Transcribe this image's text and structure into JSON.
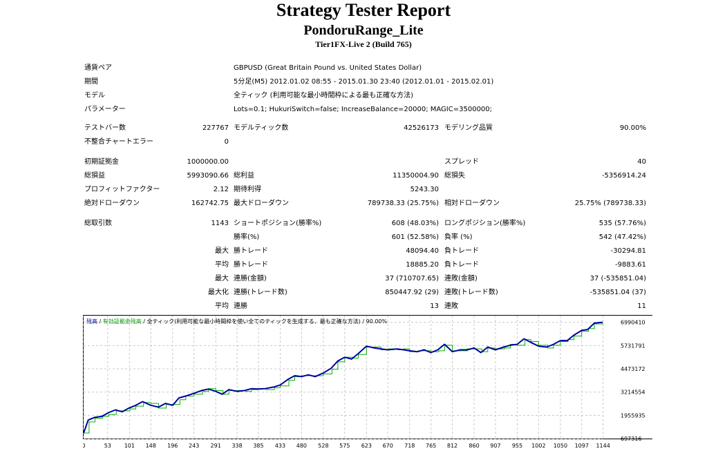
{
  "header": {
    "title": "Strategy Tester Report",
    "ea_name": "PondoruRange_Lite",
    "server": "Tier1FX-Live 2 (Build 765)"
  },
  "info": {
    "symbol_label": "通貨ペア",
    "symbol_value": "GBPUSD (Great Britain Pound vs. United States Dollar)",
    "period_label": "期間",
    "period_value": "5分足(M5) 2012.01.02 08:55 - 2015.01.30 23:40 (2012.01.01 - 2015.02.01)",
    "model_label": "モデル",
    "model_value": "全ティック (利用可能な最小時間枠による最も正確な方法)",
    "params_label": "パラメーター",
    "params_value": "Lots=0.1; HukuriSwitch=false; IncreaseBalance=20000; MAGIC=3500000;"
  },
  "stats": {
    "bars_label": "テストバー数",
    "bars_value": "227767",
    "ticks_label": "モデルティック数",
    "ticks_value": "42526173",
    "quality_label": "モデリング品質",
    "quality_value": "90.00%",
    "mismatch_label": "不整合チャートエラー",
    "mismatch_value": "0",
    "deposit_label": "初期証拠金",
    "deposit_value": "1000000.00",
    "spread_label": "スプレッド",
    "spread_value": "40",
    "net_label": "総損益",
    "net_value": "5993090.66",
    "gross_profit_label": "総利益",
    "gross_profit_value": "11350004.90",
    "gross_loss_label": "総損失",
    "gross_loss_value": "-5356914.24",
    "pf_label": "プロフィットファクター",
    "pf_value": "2.12",
    "payoff_label": "期待利得",
    "payoff_value": "5243.30",
    "abs_dd_label": "絶対ドローダウン",
    "abs_dd_value": "162742.75",
    "max_dd_label": "最大ドローダウン",
    "max_dd_value": "789738.33 (25.75%)",
    "rel_dd_label": "相対ドローダウン",
    "rel_dd_value": "25.75% (789738.33)",
    "trades_label": "総取引数",
    "trades_value": "1143",
    "short_label": "ショートポジション(勝率%)",
    "short_value": "608 (48.03%)",
    "long_label": "ロングポジション(勝率%)",
    "long_value": "535 (57.76%)",
    "win_rate_label": "勝率(%)",
    "win_rate_value": "601 (52.58%)",
    "loss_rate_label": "負率 (%)",
    "loss_rate_value": "542 (47.42%)",
    "max_label": "最大",
    "largest_win_label": "勝トレード",
    "largest_win_value": "48094.40",
    "largest_loss_label": "負トレード",
    "largest_loss_value": "-30294.81",
    "avg_label": "平均",
    "avg_win_label": "勝トレード",
    "avg_win_value": "18885.20",
    "avg_loss_label": "負トレード",
    "avg_loss_value": "-9883.61",
    "max2_label": "最大",
    "consec_win_money_label": "連勝(金額)",
    "consec_win_money_value": "37 (710707.65)",
    "consec_loss_money_label": "連敗(金額)",
    "consec_loss_money_value": "37 (-535851.04)",
    "maximal_label": "最大化",
    "consec_win_count_label": "連勝(トレード数)",
    "consec_win_count_value": "850447.92 (29)",
    "consec_loss_count_label": "連敗(トレード数)",
    "consec_loss_count_value": "-535851.04 (37)",
    "avg2_label": "平均",
    "avg_consec_win_label": "連勝",
    "avg_consec_win_value": "13",
    "avg_consec_loss_label": "連敗",
    "avg_consec_loss_value": "11"
  },
  "colors": {
    "balance": "#0000a0",
    "equity": "#00b000",
    "grid": "#c8c8c8"
  },
  "chart_data": {
    "type": "line",
    "legend_balance": "残高",
    "legend_sep1": " / ",
    "legend_equity": "有効証拠金残高",
    "legend_rest": " / 全ティック(利用可能な最小時間枠を使い全てのティックを生成する、最も正確な方法) / 90.00%",
    "x_ticks": [
      0,
      53,
      101,
      148,
      196,
      243,
      291,
      338,
      385,
      433,
      480,
      528,
      575,
      623,
      670,
      718,
      765,
      812,
      860,
      907,
      955,
      1002,
      1050,
      1097,
      1144
    ],
    "y_ticks": [
      697316,
      1955935,
      3214554,
      4473172,
      5731791,
      6990410
    ],
    "xlim": [
      0,
      1143
    ],
    "ylim": [
      700000,
      7350000
    ],
    "series": [
      {
        "name": "残高",
        "x": [
          0,
          10,
          25,
          40,
          55,
          70,
          85,
          100,
          115,
          130,
          148,
          165,
          180,
          196,
          210,
          225,
          243,
          260,
          275,
          291,
          305,
          320,
          338,
          355,
          370,
          385,
          400,
          420,
          433,
          450,
          465,
          480,
          495,
          510,
          528,
          545,
          560,
          575,
          590,
          605,
          623,
          640,
          655,
          670,
          690,
          705,
          718,
          735,
          750,
          765,
          780,
          795,
          812,
          830,
          845,
          860,
          875,
          890,
          907,
          925,
          940,
          955,
          970,
          985,
          1002,
          1020,
          1035,
          1050,
          1065,
          1080,
          1097,
          1110,
          1125,
          1143
        ],
        "y": [
          1000000,
          1700000,
          1850000,
          1900000,
          2100000,
          2250000,
          2150000,
          2350000,
          2500000,
          2700000,
          2500000,
          2400000,
          2600000,
          2500000,
          2900000,
          3000000,
          3150000,
          3300000,
          3380000,
          3250000,
          3100000,
          3350000,
          3250000,
          3300000,
          3400000,
          3380000,
          3400000,
          3500000,
          3600000,
          3900000,
          4100000,
          4050000,
          4150000,
          4050000,
          4250000,
          4500000,
          4900000,
          5100000,
          5000000,
          5300000,
          5700000,
          5600000,
          5550000,
          5500000,
          5550000,
          5500000,
          5450000,
          5400000,
          5500000,
          5350000,
          5500000,
          5800000,
          5400000,
          5500000,
          5500000,
          5600000,
          5350000,
          5650000,
          5500000,
          5650000,
          5750000,
          5800000,
          6100000,
          5900000,
          5700000,
          5650000,
          5800000,
          6000000,
          6000000,
          6300000,
          6550000,
          6600000,
          6950000,
          6990410
        ]
      },
      {
        "name": "有効証拠金残高",
        "x": [
          0,
          12,
          25,
          42,
          55,
          72,
          85,
          102,
          115,
          132,
          148,
          165,
          182,
          196,
          212,
          225,
          243,
          262,
          275,
          291,
          307,
          320,
          338,
          357,
          370,
          385,
          402,
          420,
          433,
          452,
          465,
          480,
          497,
          510,
          528,
          547,
          560,
          575,
          592,
          605,
          623,
          642,
          655,
          670,
          692,
          705,
          718,
          737,
          750,
          765,
          782,
          795,
          812,
          832,
          845,
          860,
          877,
          890,
          907,
          927,
          940,
          955,
          972,
          985,
          1002,
          1022,
          1035,
          1050,
          1067,
          1080,
          1097,
          1112,
          1125,
          1143
        ],
        "y": [
          1000000,
          1600000,
          1800000,
          1900000,
          2000000,
          2200000,
          2200000,
          2300000,
          2450000,
          2650000,
          2600000,
          2350000,
          2550000,
          2550000,
          2800000,
          3000000,
          3100000,
          3250000,
          3400000,
          3300000,
          3100000,
          3300000,
          3300000,
          3250000,
          3350000,
          3400000,
          3350000,
          3450000,
          3550000,
          3850000,
          4050000,
          4100000,
          4100000,
          4100000,
          4200000,
          4450000,
          4850000,
          5100000,
          5050000,
          5250000,
          5650000,
          5650000,
          5500000,
          5550000,
          5500000,
          5550000,
          5400000,
          5450000,
          5450000,
          5400000,
          5450000,
          5750000,
          5450000,
          5450000,
          5550000,
          5550000,
          5400000,
          5600000,
          5550000,
          5600000,
          5800000,
          5750000,
          6050000,
          5950000,
          5750000,
          5600000,
          5750000,
          5950000,
          6050000,
          6250000,
          6500000,
          6650000,
          6900000,
          6990410
        ]
      }
    ]
  }
}
